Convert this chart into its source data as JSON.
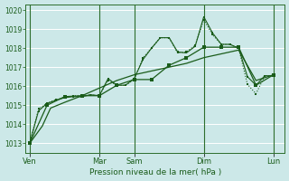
{
  "xlabel": "Pression niveau de la mer( hPa )",
  "bg_color": "#cce8e8",
  "grid_color": "#b0d8d8",
  "line_color": "#1a5c1a",
  "ylim": [
    1012.5,
    1020.3
  ],
  "yticks": [
    1013,
    1014,
    1015,
    1016,
    1017,
    1018,
    1019,
    1020
  ],
  "day_labels": [
    "Ven",
    "Mar",
    "Sam",
    "Dim",
    "Lun"
  ],
  "day_positions": [
    0,
    0.333,
    0.5,
    0.833,
    1.167
  ],
  "xlim": [
    -0.02,
    1.22
  ],
  "series1_x": [
    0.0,
    0.083,
    0.167,
    0.25,
    0.333,
    0.417,
    0.5,
    0.583,
    0.667,
    0.75,
    0.833,
    0.917,
    1.0,
    1.083,
    1.167
  ],
  "series1_y": [
    1013.0,
    1015.0,
    1015.45,
    1015.5,
    1015.5,
    1016.05,
    1016.35,
    1016.35,
    1017.1,
    1017.5,
    1018.05,
    1018.05,
    1018.05,
    1016.05,
    1016.6
  ],
  "series2_x": [
    0.0,
    0.042,
    0.083,
    0.125,
    0.167,
    0.208,
    0.25,
    0.292,
    0.333,
    0.375,
    0.417,
    0.458,
    0.5,
    0.542,
    0.583,
    0.625,
    0.667,
    0.708,
    0.75,
    0.792,
    0.833,
    0.875,
    0.917,
    0.958,
    1.0,
    1.042,
    1.083,
    1.125,
    1.167
  ],
  "series2_y": [
    1013.0,
    1014.8,
    1015.1,
    1015.3,
    1015.4,
    1015.5,
    1015.5,
    1015.55,
    1015.5,
    1016.3,
    1016.05,
    1016.05,
    1016.35,
    1017.5,
    1018.0,
    1018.55,
    1018.55,
    1017.75,
    1017.8,
    1018.15,
    1019.5,
    1018.7,
    1018.2,
    1018.2,
    1018.0,
    1016.1,
    1015.6,
    1016.55,
    1016.55
  ],
  "series3_x": [
    0.0,
    0.042,
    0.083,
    0.125,
    0.167,
    0.208,
    0.25,
    0.292,
    0.333,
    0.375,
    0.417,
    0.458,
    0.5,
    0.542,
    0.583,
    0.625,
    0.667,
    0.708,
    0.75,
    0.792,
    0.833,
    0.875,
    0.917,
    0.958,
    1.0,
    1.042,
    1.083,
    1.125,
    1.167
  ],
  "series3_y": [
    1013.0,
    1014.7,
    1015.1,
    1015.25,
    1015.4,
    1015.45,
    1015.45,
    1015.55,
    1015.5,
    1016.4,
    1016.05,
    1016.05,
    1016.4,
    1017.4,
    1018.0,
    1018.55,
    1018.55,
    1017.8,
    1017.75,
    1018.1,
    1019.65,
    1018.8,
    1018.2,
    1018.2,
    1018.0,
    1016.5,
    1016.05,
    1016.55,
    1016.55
  ],
  "series4_x": [
    0.0,
    0.02,
    0.06,
    0.1,
    0.167,
    0.25,
    0.333,
    0.417,
    0.5,
    0.583,
    0.667,
    0.75,
    0.833,
    0.917,
    1.0,
    1.083,
    1.167
  ],
  "series4_y": [
    1013.0,
    1013.3,
    1013.9,
    1014.85,
    1015.15,
    1015.5,
    1015.9,
    1016.3,
    1016.6,
    1016.8,
    1017.0,
    1017.2,
    1017.5,
    1017.7,
    1017.9,
    1016.3,
    1016.6
  ]
}
